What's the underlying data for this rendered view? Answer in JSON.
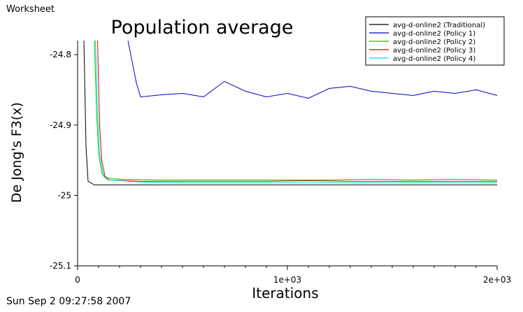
{
  "window": {
    "label": "Worksheet",
    "timestamp": "Sun Sep 2 09:27:58 2007"
  },
  "chart_data": {
    "type": "line",
    "title": "Population average",
    "xlabel": "Iterations",
    "ylabel": "De Jong's F3(x)",
    "xlim": [
      0,
      2000
    ],
    "ylim": [
      -25.1,
      -24.78
    ],
    "x_ticks": [
      0,
      1000,
      2000
    ],
    "x_tick_labels": [
      "0",
      "1e+03",
      "2e+03"
    ],
    "y_ticks": [
      -24.8,
      -24.9,
      -25,
      -25.1
    ],
    "y_tick_labels": [
      "-24.8",
      "-24.9",
      "-25",
      "-25.1"
    ],
    "grid": false,
    "legend_position": "top-right",
    "series": [
      {
        "name": "avg-d-online2 (Traditional)",
        "color": "#000000",
        "x": [
          30,
          40,
          50,
          80,
          150,
          300,
          600,
          900,
          1200,
          1500,
          1800,
          2000
        ],
        "values": [
          -24.78,
          -24.93,
          -24.98,
          -24.985,
          -24.985,
          -24.985,
          -24.985,
          -24.985,
          -24.985,
          -24.985,
          -24.985,
          -24.985
        ]
      },
      {
        "name": "avg-d-online2 (Policy 1)",
        "color": "#0000cc",
        "x": [
          240,
          260,
          280,
          300,
          400,
          500,
          600,
          700,
          800,
          900,
          1000,
          1100,
          1200,
          1300,
          1400,
          1500,
          1600,
          1700,
          1800,
          1900,
          2000
        ],
        "values": [
          -24.78,
          -24.81,
          -24.84,
          -24.86,
          -24.857,
          -24.855,
          -24.86,
          -24.838,
          -24.852,
          -24.86,
          -24.855,
          -24.862,
          -24.848,
          -24.845,
          -24.852,
          -24.855,
          -24.858,
          -24.852,
          -24.855,
          -24.85,
          -24.858
        ]
      },
      {
        "name": "avg-d-online2 (Policy 2)",
        "color": "#00cc00",
        "x": [
          80,
          90,
          100,
          115,
          130,
          200,
          400,
          600,
          800,
          1000,
          1200,
          1400,
          1600,
          1800,
          2000
        ],
        "values": [
          -24.78,
          -24.88,
          -24.94,
          -24.968,
          -24.975,
          -24.977,
          -24.978,
          -24.978,
          -24.978,
          -24.978,
          -24.978,
          -24.977,
          -24.978,
          -24.977,
          -24.978
        ]
      },
      {
        "name": "avg-d-online2 (Policy 3)",
        "color": "#dd0000",
        "x": [
          95,
          105,
          115,
          130,
          150,
          300,
          500,
          700,
          900,
          1100,
          1300,
          1500,
          1700,
          1900,
          2000
        ],
        "values": [
          -24.78,
          -24.9,
          -24.95,
          -24.972,
          -24.978,
          -24.98,
          -24.98,
          -24.98,
          -24.98,
          -24.979,
          -24.98,
          -24.98,
          -24.98,
          -24.98,
          -24.98
        ]
      },
      {
        "name": "avg-d-online2 (Policy 4)",
        "color": "#00dddd",
        "x": [
          85,
          95,
          105,
          120,
          140,
          300,
          500,
          700,
          900,
          1100,
          1300,
          1500,
          1700,
          1900,
          2000
        ],
        "values": [
          -24.78,
          -24.88,
          -24.94,
          -24.968,
          -24.978,
          -24.981,
          -24.982,
          -24.982,
          -24.982,
          -24.982,
          -24.982,
          -24.982,
          -24.982,
          -24.982,
          -24.982
        ]
      }
    ]
  }
}
